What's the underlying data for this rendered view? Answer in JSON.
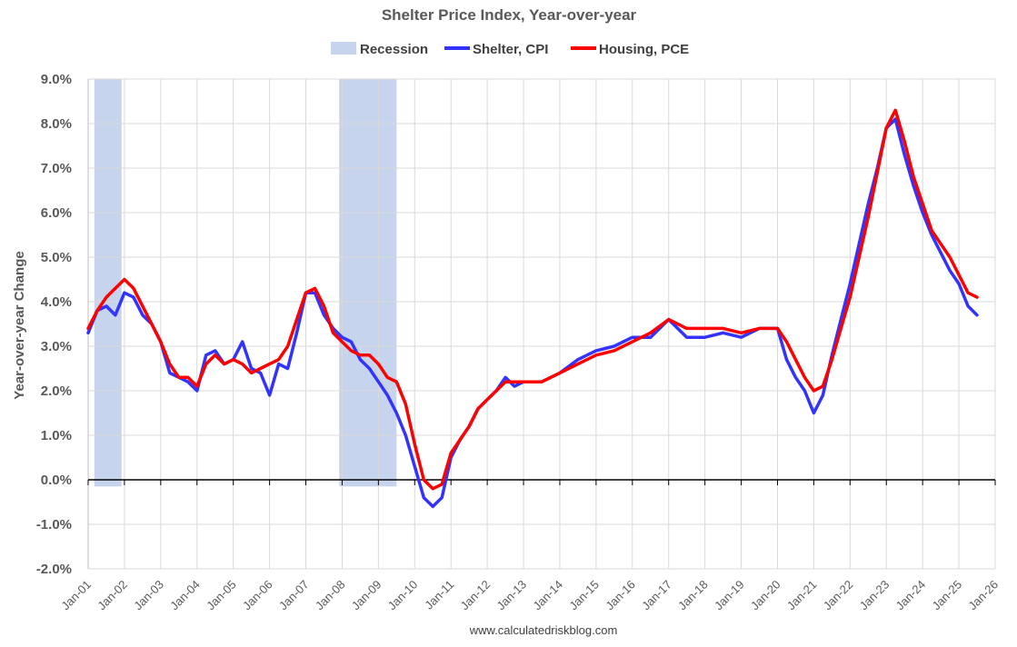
{
  "chart_data": {
    "type": "line",
    "title": "Shelter Price Index, Year-over-year",
    "ylabel": "Year-over-year Change",
    "xlabel": "",
    "source": "www.calculatedriskblog.com",
    "ylim": [
      -2.0,
      9.0
    ],
    "xlim": [
      2001.0,
      2026.0
    ],
    "yticks": [
      "-2.0%",
      "-1.0%",
      "0.0%",
      "1.0%",
      "2.0%",
      "3.0%",
      "4.0%",
      "5.0%",
      "6.0%",
      "7.0%",
      "8.0%",
      "9.0%"
    ],
    "xticks": [
      "Jan-01",
      "Jan-02",
      "Jan-03",
      "Jan-04",
      "Jan-05",
      "Jan-06",
      "Jan-07",
      "Jan-08",
      "Jan-09",
      "Jan-10",
      "Jan-11",
      "Jan-12",
      "Jan-13",
      "Jan-14",
      "Jan-15",
      "Jan-16",
      "Jan-17",
      "Jan-18",
      "Jan-19",
      "Jan-20",
      "Jan-21",
      "Jan-22",
      "Jan-23",
      "Jan-24",
      "Jan-25",
      "Jan-26"
    ],
    "grid": true,
    "legend_position": "top-center",
    "legend": [
      {
        "name": "Recession",
        "type": "area",
        "color": "#c6d4ee"
      },
      {
        "name": "Shelter, CPI",
        "type": "line",
        "color": "#3333ff"
      },
      {
        "name": "Housing, PCE",
        "type": "line",
        "color": "#ff0000"
      }
    ],
    "recessions": [
      [
        2001.17,
        2001.92
      ],
      [
        2007.92,
        2009.5
      ]
    ],
    "series": [
      {
        "name": "Shelter, CPI",
        "color": "#3333ff",
        "x": [
          2001.0,
          2001.25,
          2001.5,
          2001.75,
          2002.0,
          2002.25,
          2002.5,
          2002.75,
          2003.0,
          2003.25,
          2003.5,
          2003.75,
          2004.0,
          2004.25,
          2004.5,
          2004.75,
          2005.0,
          2005.25,
          2005.5,
          2005.75,
          2006.0,
          2006.25,
          2006.5,
          2006.75,
          2007.0,
          2007.25,
          2007.5,
          2007.75,
          2008.0,
          2008.25,
          2008.5,
          2008.75,
          2009.0,
          2009.25,
          2009.5,
          2009.75,
          2010.0,
          2010.25,
          2010.5,
          2010.75,
          2011.0,
          2011.25,
          2011.5,
          2011.75,
          2012.0,
          2012.25,
          2012.5,
          2012.75,
          2013.0,
          2013.5,
          2014.0,
          2014.5,
          2015.0,
          2015.5,
          2016.0,
          2016.5,
          2017.0,
          2017.5,
          2018.0,
          2018.5,
          2019.0,
          2019.5,
          2020.0,
          2020.25,
          2020.5,
          2020.75,
          2021.0,
          2021.25,
          2021.5,
          2021.75,
          2022.0,
          2022.25,
          2022.5,
          2022.75,
          2023.0,
          2023.25,
          2023.5,
          2023.75,
          2024.0,
          2024.25,
          2024.5,
          2024.75,
          2025.0,
          2025.25,
          2025.5
        ],
        "values": [
          3.3,
          3.8,
          3.9,
          3.7,
          4.2,
          4.1,
          3.7,
          3.5,
          3.1,
          2.4,
          2.3,
          2.2,
          2.0,
          2.8,
          2.9,
          2.6,
          2.7,
          3.1,
          2.5,
          2.4,
          1.9,
          2.6,
          2.5,
          3.3,
          4.2,
          4.2,
          3.7,
          3.4,
          3.2,
          3.1,
          2.7,
          2.5,
          2.2,
          1.9,
          1.5,
          1.0,
          0.3,
          -0.4,
          -0.6,
          -0.4,
          0.5,
          0.9,
          1.2,
          1.6,
          1.8,
          2.0,
          2.3,
          2.1,
          2.2,
          2.2,
          2.4,
          2.7,
          2.9,
          3.0,
          3.2,
          3.2,
          3.6,
          3.2,
          3.2,
          3.3,
          3.2,
          3.4,
          3.4,
          2.7,
          2.3,
          2.0,
          1.5,
          1.9,
          2.8,
          3.6,
          4.4,
          5.3,
          6.2,
          7.0,
          7.9,
          8.1,
          7.3,
          6.6,
          6.0,
          5.5,
          5.1,
          4.7,
          4.4,
          3.9,
          3.7
        ]
      },
      {
        "name": "Housing, PCE",
        "color": "#ff0000",
        "x": [
          2001.0,
          2001.25,
          2001.5,
          2001.75,
          2002.0,
          2002.25,
          2002.5,
          2002.75,
          2003.0,
          2003.25,
          2003.5,
          2003.75,
          2004.0,
          2004.25,
          2004.5,
          2004.75,
          2005.0,
          2005.25,
          2005.5,
          2005.75,
          2006.0,
          2006.25,
          2006.5,
          2006.75,
          2007.0,
          2007.25,
          2007.5,
          2007.75,
          2008.0,
          2008.25,
          2008.5,
          2008.75,
          2009.0,
          2009.25,
          2009.5,
          2009.75,
          2010.0,
          2010.25,
          2010.5,
          2010.75,
          2011.0,
          2011.25,
          2011.5,
          2011.75,
          2012.0,
          2012.25,
          2012.5,
          2012.75,
          2013.0,
          2013.5,
          2014.0,
          2014.5,
          2015.0,
          2015.5,
          2016.0,
          2016.5,
          2017.0,
          2017.5,
          2018.0,
          2018.5,
          2019.0,
          2019.5,
          2020.0,
          2020.25,
          2020.5,
          2020.75,
          2021.0,
          2021.25,
          2021.5,
          2021.75,
          2022.0,
          2022.25,
          2022.5,
          2022.75,
          2023.0,
          2023.25,
          2023.5,
          2023.75,
          2024.0,
          2024.25,
          2024.5,
          2024.75,
          2025.0,
          2025.25,
          2025.5
        ],
        "values": [
          3.4,
          3.8,
          4.1,
          4.3,
          4.5,
          4.3,
          3.9,
          3.5,
          3.1,
          2.6,
          2.3,
          2.3,
          2.1,
          2.6,
          2.8,
          2.6,
          2.7,
          2.6,
          2.4,
          2.5,
          2.6,
          2.7,
          3.0,
          3.6,
          4.2,
          4.3,
          3.9,
          3.3,
          3.1,
          2.9,
          2.8,
          2.8,
          2.6,
          2.3,
          2.2,
          1.7,
          0.8,
          0.0,
          -0.2,
          -0.1,
          0.6,
          0.9,
          1.2,
          1.6,
          1.8,
          2.0,
          2.2,
          2.2,
          2.2,
          2.2,
          2.4,
          2.6,
          2.8,
          2.9,
          3.1,
          3.3,
          3.6,
          3.4,
          3.4,
          3.4,
          3.3,
          3.4,
          3.4,
          3.1,
          2.7,
          2.3,
          2.0,
          2.1,
          2.7,
          3.4,
          4.1,
          5.0,
          5.9,
          6.9,
          7.9,
          8.3,
          7.6,
          6.8,
          6.2,
          5.6,
          5.3,
          5.0,
          4.6,
          4.2,
          4.1
        ]
      }
    ]
  }
}
